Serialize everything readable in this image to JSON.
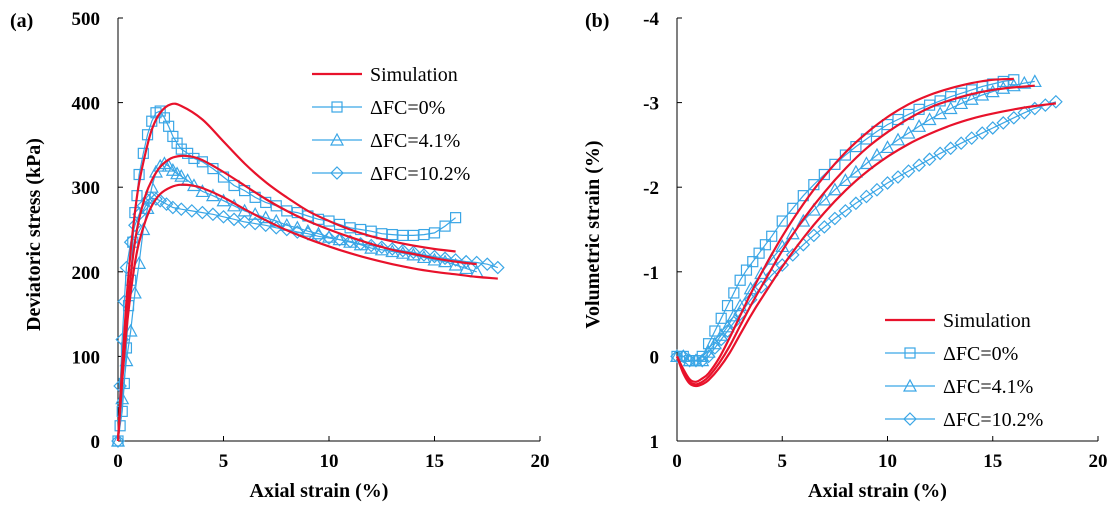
{
  "colors": {
    "simulation": "#e8122b",
    "experiment": "#3aa6e6",
    "axis": "#000000"
  },
  "chart_data": [
    {
      "type": "line",
      "panel_label": "(a)",
      "xlabel": "Axial strain (%)",
      "ylabel": "Deviatoric stress (kPa)",
      "xlim": [
        0,
        20
      ],
      "ylim": [
        0,
        500
      ],
      "y_inverted": false,
      "x_ticks": [
        0,
        5,
        10,
        15,
        20
      ],
      "y_ticks": [
        0,
        100,
        200,
        300,
        400,
        500
      ],
      "x_tick_labels": [
        "0",
        "5",
        "10",
        "15",
        "20"
      ],
      "y_tick_labels": [
        "0",
        "100",
        "200",
        "300",
        "400",
        "500"
      ],
      "grid": false,
      "legend_position": "top-right",
      "legend": [
        {
          "label": "Simulation",
          "marker": "line"
        },
        {
          "label": "ΔFC=0%",
          "marker": "square"
        },
        {
          "label": "ΔFC=4.1%",
          "marker": "triangle"
        },
        {
          "label": "ΔFC=10.2%",
          "marker": "diamond"
        }
      ],
      "series": [
        {
          "name": "ΔFC=0%",
          "kind": "experiment",
          "marker": "square",
          "x": [
            0,
            0.1,
            0.2,
            0.3,
            0.4,
            0.5,
            0.6,
            0.7,
            0.8,
            0.9,
            1.0,
            1.2,
            1.4,
            1.6,
            1.8,
            2.0,
            2.2,
            2.4,
            2.6,
            2.8,
            3.0,
            3.3,
            3.6,
            4,
            4.5,
            5,
            5.5,
            6,
            6.5,
            7,
            7.5,
            8,
            8.5,
            9,
            9.5,
            10,
            10.5,
            11,
            11.5,
            12,
            12.5,
            13,
            13.5,
            14,
            14.5,
            15,
            15.5,
            16
          ],
          "y": [
            0,
            18,
            35,
            68,
            110,
            160,
            190,
            235,
            270,
            290,
            315,
            340,
            362,
            378,
            388,
            390,
            382,
            372,
            360,
            352,
            345,
            340,
            334,
            330,
            322,
            312,
            302,
            296,
            288,
            282,
            278,
            272,
            270,
            266,
            262,
            260,
            256,
            252,
            250,
            248,
            245,
            244,
            243,
            243,
            244,
            246,
            254,
            264
          ]
        },
        {
          "name": "ΔFC=4.1%",
          "kind": "experiment",
          "marker": "triangle",
          "x": [
            0,
            0.2,
            0.4,
            0.6,
            0.8,
            1.0,
            1.2,
            1.4,
            1.6,
            1.8,
            2.0,
            2.2,
            2.4,
            2.6,
            2.8,
            3.0,
            3.3,
            3.6,
            4,
            4.5,
            5,
            5.5,
            6,
            6.5,
            7,
            7.5,
            8,
            8.5,
            9,
            9.5,
            10,
            10.5,
            11,
            11.5,
            12,
            12.5,
            13,
            13.5,
            14,
            14.5,
            15,
            15.5,
            16,
            16.5,
            17
          ],
          "y": [
            0,
            50,
            95,
            130,
            175,
            210,
            250,
            275,
            300,
            318,
            325,
            328,
            325,
            320,
            316,
            313,
            308,
            302,
            295,
            290,
            284,
            278,
            272,
            268,
            264,
            260,
            255,
            252,
            248,
            245,
            241,
            238,
            235,
            232,
            228,
            226,
            224,
            222,
            220,
            217,
            214,
            212,
            208,
            204,
            200
          ]
        },
        {
          "name": "ΔFC=10.2%",
          "kind": "experiment",
          "marker": "diamond",
          "x": [
            0,
            0.1,
            0.2,
            0.3,
            0.4,
            0.6,
            0.8,
            1.0,
            1.2,
            1.4,
            1.6,
            1.8,
            2.0,
            2.3,
            2.6,
            3,
            3.5,
            4,
            4.5,
            5,
            5.5,
            6,
            6.5,
            7,
            7.5,
            8,
            8.5,
            9,
            9.5,
            10,
            10.5,
            11,
            11.5,
            12,
            12.5,
            13,
            13.5,
            14,
            14.5,
            15,
            15.5,
            16,
            16.5,
            17,
            17.5,
            18
          ],
          "y": [
            0,
            65,
            120,
            165,
            205,
            235,
            255,
            268,
            278,
            285,
            287,
            286,
            284,
            280,
            276,
            274,
            272,
            270,
            268,
            265,
            262,
            259,
            257,
            255,
            252,
            250,
            247,
            245,
            242,
            240,
            238,
            236,
            233,
            231,
            229,
            227,
            225,
            223,
            220,
            218,
            216,
            214,
            212,
            211,
            209,
            205
          ]
        },
        {
          "name": "Simulation",
          "kind": "simulation",
          "marker": "line",
          "x": [
            0,
            0.2,
            0.4,
            0.6,
            0.8,
            1.0,
            1.3,
            1.6,
            2.0,
            2.5,
            3,
            4,
            5,
            6,
            7,
            8,
            9,
            10,
            11,
            12,
            13,
            14,
            15,
            16
          ],
          "y": [
            0,
            90,
            165,
            225,
            270,
            305,
            340,
            368,
            388,
            398,
            396,
            380,
            354,
            328,
            306,
            288,
            272,
            260,
            250,
            242,
            236,
            231,
            227,
            224
          ]
        },
        {
          "name": "Simulation",
          "kind": "simulation",
          "marker": "line",
          "x": [
            0,
            0.2,
            0.4,
            0.6,
            0.8,
            1.0,
            1.3,
            1.6,
            2.0,
            2.5,
            3,
            3.5,
            4,
            5,
            6,
            7,
            8,
            9,
            10,
            11,
            12,
            13,
            14,
            15,
            16,
            17
          ],
          "y": [
            0,
            80,
            145,
            195,
            235,
            262,
            290,
            308,
            324,
            334,
            337,
            336,
            332,
            318,
            302,
            286,
            272,
            260,
            250,
            241,
            233,
            226,
            221,
            216,
            212,
            209
          ]
        },
        {
          "name": "Simulation",
          "kind": "simulation",
          "marker": "line",
          "x": [
            0,
            0.2,
            0.4,
            0.6,
            0.8,
            1.0,
            1.3,
            1.6,
            2.0,
            2.5,
            3,
            3.5,
            4,
            5,
            6,
            7,
            8,
            9,
            10,
            11,
            12,
            13,
            14,
            15,
            16,
            17,
            18
          ],
          "y": [
            0,
            70,
            130,
            175,
            210,
            235,
            260,
            278,
            292,
            300,
            303,
            302,
            299,
            288,
            274,
            261,
            249,
            239,
            230,
            222,
            215,
            209,
            204,
            200,
            197,
            194,
            192
          ]
        }
      ]
    },
    {
      "type": "line",
      "panel_label": "(b)",
      "xlabel": "Axial strain (%)",
      "ylabel": "Volumetric strain (%)",
      "xlim": [
        0,
        20
      ],
      "ylim": [
        1,
        -4
      ],
      "y_inverted": true,
      "x_ticks": [
        0,
        5,
        10,
        15,
        20
      ],
      "y_ticks": [
        1,
        0,
        -1,
        -2,
        -3,
        -4
      ],
      "x_tick_labels": [
        "0",
        "5",
        "10",
        "15",
        "20"
      ],
      "y_tick_labels": [
        "1",
        "0",
        "-1",
        "-2",
        "-3",
        "-4"
      ],
      "grid": false,
      "legend_position": "bottom-right",
      "legend": [
        {
          "label": "Simulation",
          "marker": "line"
        },
        {
          "label": "ΔFC=0%",
          "marker": "square"
        },
        {
          "label": "ΔFC=4.1%",
          "marker": "triangle"
        },
        {
          "label": "ΔFC=10.2%",
          "marker": "diamond"
        }
      ],
      "series": [
        {
          "name": "ΔFC=0%",
          "kind": "experiment",
          "marker": "square",
          "x": [
            0,
            0.3,
            0.6,
            0.9,
            1.2,
            1.5,
            1.8,
            2.1,
            2.4,
            2.7,
            3,
            3.3,
            3.6,
            3.9,
            4.2,
            4.5,
            5,
            5.5,
            6,
            6.5,
            7,
            7.5,
            8,
            8.5,
            9,
            9.5,
            10,
            10.5,
            11,
            11.5,
            12,
            12.5,
            13,
            13.5,
            14,
            14.5,
            15,
            15.5,
            16
          ],
          "y": [
            0,
            0,
            0.05,
            0.05,
            0,
            -0.15,
            -0.3,
            -0.45,
            -0.6,
            -0.75,
            -0.9,
            -1.02,
            -1.12,
            -1.22,
            -1.32,
            -1.42,
            -1.6,
            -1.75,
            -1.9,
            -2.03,
            -2.15,
            -2.27,
            -2.38,
            -2.48,
            -2.57,
            -2.66,
            -2.74,
            -2.8,
            -2.86,
            -2.92,
            -2.97,
            -3.02,
            -3.07,
            -3.11,
            -3.15,
            -3.19,
            -3.22,
            -3.25,
            -3.27
          ]
        },
        {
          "name": "ΔFC=4.1%",
          "kind": "experiment",
          "marker": "triangle",
          "x": [
            0,
            0.3,
            0.6,
            0.9,
            1.2,
            1.5,
            1.8,
            2.1,
            2.4,
            2.7,
            3,
            3.5,
            4,
            4.5,
            5,
            5.5,
            6,
            6.5,
            7,
            7.5,
            8,
            8.5,
            9,
            9.5,
            10,
            10.5,
            11,
            11.5,
            12,
            12.5,
            13,
            13.5,
            14,
            14.5,
            15,
            15.5,
            16,
            16.5,
            17
          ],
          "y": [
            0,
            0,
            0.05,
            0.05,
            0.05,
            -0.05,
            -0.15,
            -0.25,
            -0.35,
            -0.48,
            -0.6,
            -0.8,
            -0.98,
            -1.15,
            -1.3,
            -1.45,
            -1.6,
            -1.73,
            -1.85,
            -1.97,
            -2.08,
            -2.18,
            -2.28,
            -2.38,
            -2.47,
            -2.56,
            -2.64,
            -2.72,
            -2.8,
            -2.87,
            -2.93,
            -2.99,
            -3.04,
            -3.09,
            -3.13,
            -3.17,
            -3.2,
            -3.23,
            -3.25
          ]
        },
        {
          "name": "ΔFC=10.2%",
          "kind": "experiment",
          "marker": "diamond",
          "x": [
            0,
            0.3,
            0.6,
            0.9,
            1.2,
            1.5,
            1.8,
            2.1,
            2.4,
            2.7,
            3,
            3.5,
            4,
            4.5,
            5,
            5.5,
            6,
            6.5,
            7,
            7.5,
            8,
            8.5,
            9,
            9.5,
            10,
            10.5,
            11,
            11.5,
            12,
            12.5,
            13,
            13.5,
            14,
            14.5,
            15,
            15.5,
            16,
            16.5,
            17,
            17.5,
            18
          ],
          "y": [
            0,
            0,
            0.05,
            0.05,
            0.05,
            0,
            -0.1,
            -0.2,
            -0.3,
            -0.4,
            -0.5,
            -0.67,
            -0.82,
            -0.96,
            -1.08,
            -1.2,
            -1.32,
            -1.43,
            -1.53,
            -1.63,
            -1.72,
            -1.81,
            -1.89,
            -1.97,
            -2.05,
            -2.12,
            -2.19,
            -2.26,
            -2.33,
            -2.4,
            -2.46,
            -2.52,
            -2.58,
            -2.64,
            -2.7,
            -2.76,
            -2.82,
            -2.88,
            -2.93,
            -2.97,
            -3.01
          ]
        },
        {
          "name": "Simulation",
          "kind": "simulation",
          "marker": "line",
          "x": [
            0,
            0.3,
            0.6,
            0.9,
            1.2,
            1.5,
            2,
            2.5,
            3,
            3.5,
            4,
            5,
            6,
            7,
            8,
            9,
            10,
            11,
            12,
            13,
            14,
            15,
            16
          ],
          "y": [
            0,
            0.15,
            0.27,
            0.3,
            0.26,
            0.2,
            0.02,
            -0.22,
            -0.48,
            -0.74,
            -0.98,
            -1.42,
            -1.8,
            -2.13,
            -2.41,
            -2.64,
            -2.83,
            -2.98,
            -3.09,
            -3.17,
            -3.23,
            -3.27,
            -3.28
          ]
        },
        {
          "name": "Simulation",
          "kind": "simulation",
          "marker": "line",
          "x": [
            0,
            0.3,
            0.6,
            0.9,
            1.2,
            1.5,
            2,
            2.5,
            3,
            3.5,
            4,
            5,
            6,
            7,
            8,
            9,
            10,
            11,
            12,
            13,
            14,
            15,
            16,
            17
          ],
          "y": [
            0,
            0.18,
            0.3,
            0.33,
            0.3,
            0.24,
            0.08,
            -0.12,
            -0.36,
            -0.6,
            -0.82,
            -1.25,
            -1.62,
            -1.94,
            -2.22,
            -2.46,
            -2.65,
            -2.81,
            -2.94,
            -3.03,
            -3.1,
            -3.15,
            -3.18,
            -3.2
          ]
        },
        {
          "name": "Simulation",
          "kind": "simulation",
          "marker": "line",
          "x": [
            0,
            0.3,
            0.6,
            0.9,
            1.2,
            1.5,
            2,
            2.5,
            3,
            3.5,
            4,
            5,
            6,
            7,
            8,
            9,
            10,
            11,
            12,
            13,
            14,
            15,
            16,
            17,
            18
          ],
          "y": [
            0,
            0.2,
            0.32,
            0.35,
            0.33,
            0.28,
            0.14,
            -0.04,
            -0.26,
            -0.48,
            -0.68,
            -1.06,
            -1.4,
            -1.7,
            -1.96,
            -2.18,
            -2.36,
            -2.51,
            -2.63,
            -2.73,
            -2.81,
            -2.87,
            -2.92,
            -2.96,
            -2.99
          ]
        }
      ]
    }
  ]
}
